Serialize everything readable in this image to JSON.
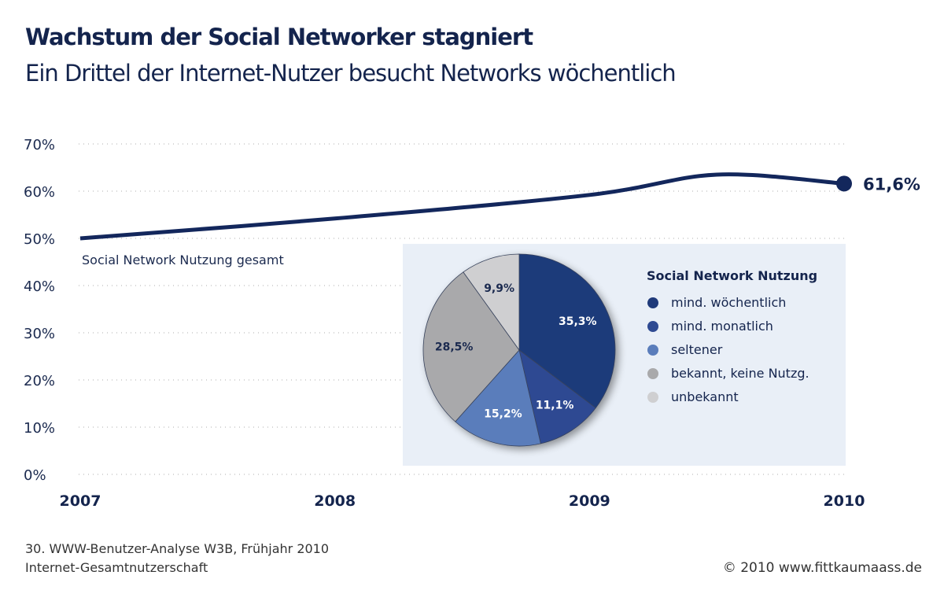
{
  "title": "Wachstum der Social Networker stagniert",
  "subtitle": "Ein Drittel der Internet-Nutzer besucht Networks wöchentlich",
  "chart_data": [
    {
      "type": "line",
      "series_label": "Social Network Nutzung gesamt",
      "x": [
        2007,
        2008,
        2009,
        2009.5,
        2010
      ],
      "y": [
        50,
        54.2,
        59.2,
        63.5,
        61.6
      ],
      "end_label": "61,6%",
      "x_ticks": [
        "2007",
        "2008",
        "2009",
        "2010"
      ],
      "y_ticks": [
        "0%",
        "10%",
        "20%",
        "30%",
        "40%",
        "50%",
        "60%",
        "70%"
      ],
      "ylim": [
        0,
        70
      ],
      "grid": true,
      "color": "#13275c"
    },
    {
      "type": "pie",
      "title": "Social Network Nutzung",
      "legend_placement": "right",
      "slices": [
        {
          "label": "mind. wöchentlich",
          "value": 35.3,
          "text": "35,3%",
          "color": "#1f3a7a",
          "text_color": "#ffffff"
        },
        {
          "label": "mind. monatlich",
          "value": 11.1,
          "text": "11,1%",
          "color": "#2e4a92",
          "text_color": "#ffffff"
        },
        {
          "label": "seltener",
          "value": 15.2,
          "text": "15,2%",
          "color": "#5a7dbb",
          "text_color": "#ffffff"
        },
        {
          "label": "bekannt, keine Nutzg.",
          "value": 28.5,
          "text": "28,5%",
          "color": "#a9a9ab",
          "text_color": "#1b2a4f"
        },
        {
          "label": "unbekannt",
          "value": 9.9,
          "text": "9,9%",
          "color": "#cfcfd1",
          "text_color": "#1b2a4f"
        }
      ]
    }
  ],
  "footer": {
    "source_line1": "30. WWW-Benutzer-Analyse W3B, Frühjahr 2010",
    "source_line2": "Internet-Gesamtnutzerschaft",
    "copyright": "© 2010 www.fittkaumaass.de"
  }
}
